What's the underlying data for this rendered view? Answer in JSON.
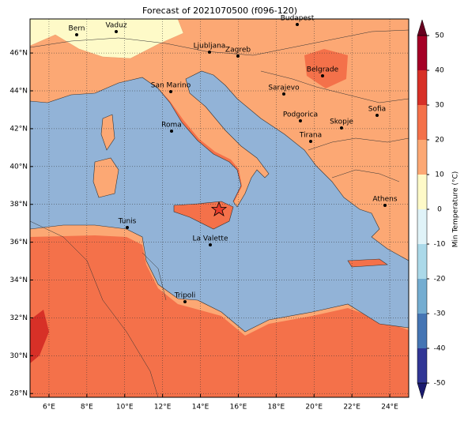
{
  "title": "Forecast of 2021070500 (f096-120)",
  "map": {
    "xlim": [
      5,
      25
    ],
    "ylim": [
      27.8,
      47.8
    ],
    "xticks": [
      {
        "value": 6,
        "label": "6°E"
      },
      {
        "value": 8,
        "label": "8°E"
      },
      {
        "value": 10,
        "label": "10°E"
      },
      {
        "value": 12,
        "label": "12°E"
      },
      {
        "value": 14,
        "label": "14°E"
      },
      {
        "value": 16,
        "label": "16°E"
      },
      {
        "value": 18,
        "label": "18°E"
      },
      {
        "value": 20,
        "label": "20°E"
      },
      {
        "value": 22,
        "label": "22°E"
      },
      {
        "value": 24,
        "label": "24°E"
      }
    ],
    "yticks": [
      {
        "value": 28,
        "label": "28°N"
      },
      {
        "value": 30,
        "label": "30°N"
      },
      {
        "value": 32,
        "label": "32°N"
      },
      {
        "value": 34,
        "label": "34°N"
      },
      {
        "value": 36,
        "label": "36°N"
      },
      {
        "value": 38,
        "label": "38°N"
      },
      {
        "value": 40,
        "label": "40°N"
      },
      {
        "value": 42,
        "label": "42°N"
      },
      {
        "value": 44,
        "label": "44°N"
      },
      {
        "value": 46,
        "label": "46°N"
      }
    ],
    "grid": true
  },
  "cities": [
    "Bern",
    "Vaduz",
    "Budapest",
    "Ljubljana",
    "Zagreb",
    "Belgrade",
    "San Marino",
    "Sarajevo",
    "Sofia",
    "Roma",
    "Podgorica",
    "Skopje",
    "Tirana",
    "Athens",
    "Tunis",
    "La Valette",
    "Tripoli"
  ],
  "colorbar": {
    "label": "Min Temperature (°C)",
    "ticks": [
      -50,
      -40,
      -30,
      -20,
      -10,
      0,
      10,
      20,
      30,
      40,
      50
    ],
    "colors": [
      "#313695",
      "#4575b4",
      "#74add1",
      "#abd9e9",
      "#e0f3f8",
      "#fefac8",
      "#fca874",
      "#f4714a",
      "#d73027",
      "#a50026"
    ],
    "under_color": "#1a1a6e",
    "over_color": "#67001f"
  }
}
